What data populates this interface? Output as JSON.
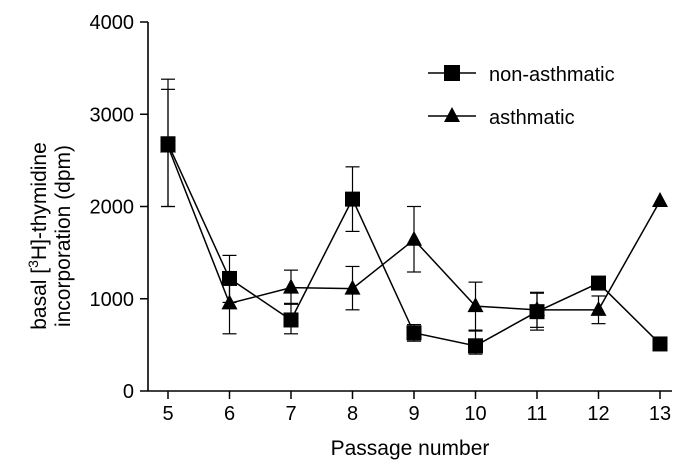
{
  "chart_data": {
    "type": "line",
    "title": "",
    "xlabel": "Passage number",
    "ylabel_line1_prefix": "basal [",
    "ylabel_line1_sup": "3",
    "ylabel_line1_suffix": "H]-thymidine",
    "ylabel_line2": "incorporation  (dpm)",
    "x": [
      5,
      6,
      7,
      8,
      9,
      10,
      11,
      12,
      13
    ],
    "x_tick_labels": [
      "5",
      "6",
      "7",
      "8",
      "9",
      "10",
      "11",
      "12",
      "13"
    ],
    "ylim": [
      0,
      4000
    ],
    "y_ticks": [
      0,
      1000,
      2000,
      3000,
      4000
    ],
    "y_tick_labels": [
      "0",
      "1000",
      "2000",
      "3000",
      "4000"
    ],
    "grid": false,
    "legend_position": "top-right",
    "series": [
      {
        "name": "non-asthmatic",
        "marker": "square",
        "values": [
          2680,
          1220,
          770,
          2080,
          630,
          490,
          860,
          1170,
          510
        ],
        "error_upper": [
          3270,
          1470,
          950,
          2430,
          720,
          660,
          1060,
          1220,
          null
        ],
        "error_lower": [
          2000,
          960,
          620,
          1730,
          540,
          400,
          660,
          1120,
          null
        ]
      },
      {
        "name": "asthmatic",
        "marker": "triangle",
        "values": [
          2650,
          950,
          1120,
          1110,
          1640,
          920,
          880,
          880,
          2060
        ],
        "error_upper": [
          3380,
          1200,
          1310,
          1350,
          2000,
          1180,
          1070,
          1030,
          null
        ],
        "error_lower": [
          2000,
          620,
          940,
          880,
          1290,
          650,
          690,
          730,
          null
        ]
      }
    ]
  }
}
